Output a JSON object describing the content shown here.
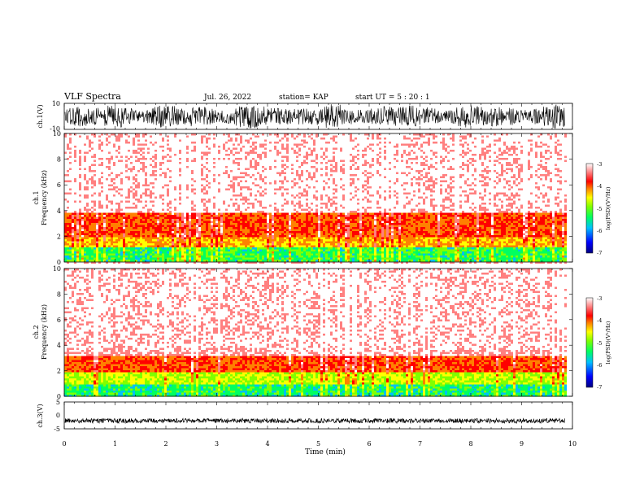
{
  "header": {
    "title": "VLF Spectra",
    "date": "Jul. 26, 2022",
    "station": "station= KAP",
    "start": "start  UT =   5  : 20 : 1"
  },
  "chart_data": [
    {
      "type": "line",
      "panel": "ch1-waveform",
      "ylabel": "ch.1(V)",
      "ylim": [
        -10,
        10
      ],
      "y_ticks": [
        "10",
        "-10"
      ],
      "xlim": [
        0,
        10
      ],
      "data_end_min": 9.85,
      "trace_color": "#000000",
      "pattern": "dense noise oscillating within roughly -9 to 9 V"
    },
    {
      "type": "heatmap",
      "panel": "ch1-spectrogram",
      "ylabel": "ch.1 Frequency (kHz)",
      "ylabel_lines": [
        "ch.1",
        "Frequency  (kHz)"
      ],
      "ylim": [
        0,
        10
      ],
      "y_ticks": [
        "0",
        "2",
        "4",
        "6",
        "8",
        "10"
      ],
      "xlim": [
        0,
        10
      ],
      "data_end_min": 9.85,
      "colorbar": {
        "label": "log(PSD)(V²/Hz)",
        "range": [
          -7,
          -3
        ],
        "ticks": [
          "-3",
          "-4",
          "-5",
          "-6",
          "-7"
        ]
      },
      "bands_khz": [
        {
          "from": 0,
          "to": 1.2,
          "level": -5.5
        },
        {
          "from": 1.2,
          "to": 2.0,
          "level": -4.6
        },
        {
          "from": 2.0,
          "to": 3.8,
          "level": -4.2
        },
        {
          "from": 3.8,
          "to": 10.0,
          "level": -3.4
        }
      ]
    },
    {
      "type": "heatmap",
      "panel": "ch2-spectrogram",
      "ylabel": "ch.2 Frequency (kHz)",
      "ylabel_lines": [
        "ch.2",
        "Frequency  (kHz)"
      ],
      "ylim": [
        0,
        10
      ],
      "y_ticks": [
        "0",
        "2",
        "4",
        "6",
        "8",
        "10"
      ],
      "xlim": [
        0,
        10
      ],
      "data_end_min": 9.85,
      "colorbar": {
        "label": "log(PSD)(V²/Hz)",
        "range": [
          -7,
          -3
        ],
        "ticks": [
          "-3",
          "-4",
          "-5",
          "-6",
          "-7"
        ]
      },
      "bands_khz": [
        {
          "from": 0,
          "to": 1.0,
          "level": -5.6
        },
        {
          "from": 1.0,
          "to": 1.8,
          "level": -5.0
        },
        {
          "from": 1.8,
          "to": 3.2,
          "level": -4.2
        },
        {
          "from": 3.2,
          "to": 10.0,
          "level": -3.4
        }
      ]
    },
    {
      "type": "line",
      "panel": "ch3-waveform",
      "ylabel": "ch.3(V)",
      "ylim": [
        -5,
        5
      ],
      "y_ticks": [
        "5",
        "0",
        "-5"
      ],
      "xlim": [
        0,
        10
      ],
      "data_end_min": 9.85,
      "trace_color": "#000000",
      "pattern": "narrow dense band near -2 V"
    }
  ],
  "x_axis": {
    "label": "Time  (min)",
    "ticks": [
      "0",
      "1",
      "2",
      "3",
      "4",
      "5",
      "6",
      "7",
      "8",
      "9",
      "10"
    ]
  },
  "colormap": [
    "#000080",
    "#0000ff",
    "#00c0ff",
    "#00ff60",
    "#80ff00",
    "#ffff00",
    "#ff8000",
    "#ff0000",
    "#ff8080",
    "#ffffff"
  ]
}
